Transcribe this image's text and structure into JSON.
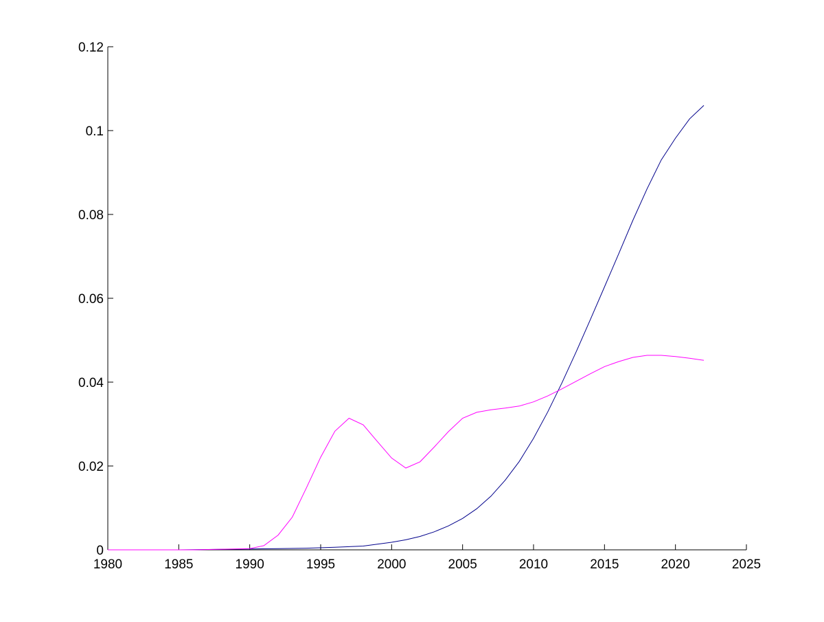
{
  "chart_data": {
    "type": "line",
    "title": "",
    "xlabel": "",
    "ylabel": "",
    "xlim": [
      1980,
      2025
    ],
    "ylim": [
      0,
      0.12
    ],
    "grid": false,
    "x_ticks": [
      "1980",
      "1985",
      "1990",
      "1995",
      "2000",
      "2005",
      "2010",
      "2015",
      "2020",
      "2025"
    ],
    "y_ticks": [
      "0",
      "0.02",
      "0.04",
      "0.06",
      "0.08",
      "0.1",
      "0.12"
    ],
    "x_tick_values": [
      1980,
      1985,
      1990,
      1995,
      2000,
      2005,
      2010,
      2015,
      2020,
      2025
    ],
    "y_tick_values": [
      0,
      0.02,
      0.04,
      0.06,
      0.08,
      0.1,
      0.12
    ],
    "series": [
      {
        "color": "#00008b",
        "x": [
          1980,
          1985,
          1990,
          1992,
          1994,
          1996,
          1998,
          2000,
          2001,
          2002,
          2003,
          2004,
          2005,
          2006,
          2007,
          2008,
          2009,
          2010,
          2011,
          2012,
          2013,
          2014,
          2015,
          2016,
          2017,
          2018,
          2019,
          2020,
          2021,
          2022
        ],
        "values": [
          0,
          0,
          0.0002,
          0.0003,
          0.0004,
          0.0006,
          0.0009,
          0.0018,
          0.0024,
          0.0032,
          0.0043,
          0.0057,
          0.0075,
          0.0098,
          0.0128,
          0.0166,
          0.0211,
          0.0266,
          0.0329,
          0.0398,
          0.0472,
          0.0549,
          0.0627,
          0.0706,
          0.0786,
          0.0861,
          0.093,
          0.0982,
          0.1028,
          0.106
        ]
      },
      {
        "color": "#ff00ff",
        "x": [
          1980,
          1986,
          1990,
          1991,
          1992,
          1993,
          1994,
          1995,
          1996,
          1997,
          1998,
          1999,
          2000,
          2001,
          2002,
          2003,
          2004,
          2005,
          2006,
          2007,
          2008,
          2009,
          2010,
          2011,
          2012,
          2013,
          2014,
          2015,
          2016,
          2017,
          2018,
          2019,
          2020,
          2021,
          2022
        ],
        "values": [
          0,
          0,
          0.0003,
          0.001,
          0.0035,
          0.0078,
          0.0148,
          0.0221,
          0.0283,
          0.0314,
          0.0298,
          0.0258,
          0.0219,
          0.0195,
          0.021,
          0.0245,
          0.0282,
          0.0314,
          0.0328,
          0.0334,
          0.0338,
          0.0343,
          0.0353,
          0.0367,
          0.0384,
          0.0402,
          0.042,
          0.0437,
          0.0449,
          0.0459,
          0.0464,
          0.0464,
          0.0461,
          0.0457,
          0.0452
        ]
      }
    ]
  }
}
